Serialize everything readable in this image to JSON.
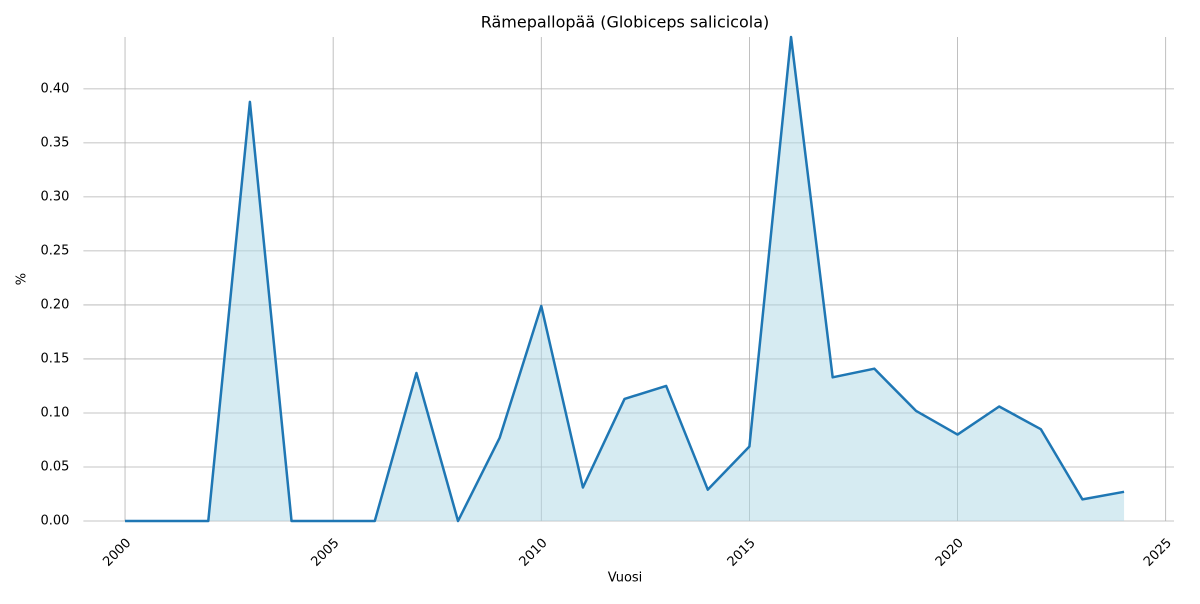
{
  "chart_data": {
    "type": "line",
    "title": "Rämepallopää (Globiceps salicicola)",
    "x_label": "Vuosi",
    "y_label": "%",
    "x": [
      2000,
      2001,
      2002,
      2003,
      2004,
      2005,
      2006,
      2007,
      2008,
      2009,
      2010,
      2011,
      2012,
      2013,
      2014,
      2015,
      2016,
      2017,
      2018,
      2019,
      2020,
      2021,
      2022,
      2023,
      2024
    ],
    "values": [
      0,
      0,
      0,
      0.388,
      0,
      0,
      0,
      0.137,
      0,
      0.077,
      0.199,
      0.031,
      0.113,
      0.125,
      0.029,
      0.069,
      0.448,
      0.133,
      0.141,
      0.102,
      0.08,
      0.106,
      0.085,
      0.02,
      0.027
    ],
    "color": "#1f77b4",
    "fill_color": "#add8e6",
    "xlim": [
      1999,
      2025.2
    ],
    "ylim": [
      0,
      0.448
    ],
    "xticks": [
      2000,
      2005,
      2010,
      2015,
      2020,
      2025
    ],
    "yticks": [
      {
        "value": 0,
        "label": "0.00"
      },
      {
        "value": 0.05,
        "label": "0.05"
      },
      {
        "value": 0.1,
        "label": "0.10"
      },
      {
        "value": 0.15,
        "label": "0.15"
      },
      {
        "value": 0.2,
        "label": "0.20"
      },
      {
        "value": 0.25,
        "label": "0.25"
      },
      {
        "value": 0.3,
        "label": "0.30"
      },
      {
        "value": 0.35,
        "label": "0.35"
      },
      {
        "value": 0.4,
        "label": "0.40"
      }
    ],
    "grid": true
  }
}
